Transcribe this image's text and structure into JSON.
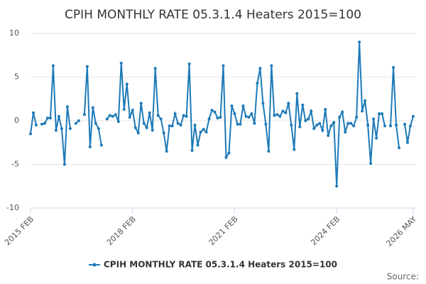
{
  "chart_data": {
    "type": "line",
    "title": "CPIH MONTHLY RATE 05.3.1.4 Heaters 2015=100",
    "source": "Source:",
    "categories": [
      "2015 FEB",
      null,
      null,
      null,
      null,
      null,
      null,
      null,
      null,
      null,
      null,
      null,
      null,
      null,
      null,
      null,
      null,
      null,
      null,
      null,
      null,
      null,
      null,
      null,
      null,
      null,
      null,
      null,
      null,
      null,
      null,
      null,
      null,
      null,
      null,
      null,
      "2018 FEB",
      null,
      null,
      null,
      null,
      null,
      null,
      null,
      null,
      null,
      null,
      null,
      null,
      null,
      null,
      null,
      null,
      null,
      null,
      null,
      null,
      null,
      null,
      null,
      null,
      null,
      null,
      null,
      null,
      null,
      null,
      null,
      null,
      null,
      null,
      null,
      "2021 FEB",
      null,
      null,
      null,
      null,
      null,
      null,
      null,
      null,
      null,
      null,
      null,
      null,
      null,
      null,
      null,
      null,
      null,
      null,
      null,
      null,
      null,
      null,
      null,
      null,
      null,
      null,
      null,
      null,
      null,
      null,
      null,
      null,
      null,
      null,
      null,
      "2024 FEB",
      null,
      null,
      null,
      null,
      null,
      null,
      null,
      null,
      null,
      null,
      null,
      null,
      null,
      null,
      null,
      null,
      null,
      null,
      null,
      null,
      null,
      null,
      null,
      null,
      null,
      null,
      "2026 MAY"
    ],
    "series": [
      {
        "name": "CPIH MONTHLY RATE 05.3.1.4 Heaters 2015=100",
        "color": "#1d7ab8",
        "values": [
          -1.5,
          0.9,
          -0.5,
          null,
          -0.4,
          -0.3,
          0.3,
          0.3,
          6.3,
          -1.1,
          0.5,
          -0.9,
          -5,
          1.6,
          -0.9,
          null,
          -0.3,
          0,
          null,
          0.7,
          6.2,
          -3,
          1.5,
          -0.3,
          -0.9,
          -2.8,
          null,
          0.2,
          0.6,
          0.5,
          0.7,
          -0.1,
          6.6,
          1.3,
          4.2,
          0.4,
          1.2,
          -0.8,
          -1.4,
          2,
          -0.3,
          -0.8,
          0.9,
          -1.1,
          6,
          0.6,
          0.2,
          -1.4,
          -3.5,
          -0.6,
          -0.6,
          0.8,
          -0.3,
          -0.5,
          0.6,
          0.5,
          6.5,
          -3.4,
          -0.5,
          -2.8,
          -1.3,
          -1,
          -1.3,
          0.2,
          1.2,
          1,
          0.3,
          0.4,
          6.3,
          -4.2,
          -3.7,
          1.7,
          0.8,
          -0.4,
          -0.4,
          1.7,
          0.5,
          0.4,
          0.8,
          -0.3,
          4.3,
          6,
          2,
          -0.4,
          -3.5,
          6.3,
          0.6,
          0.7,
          0.5,
          1.1,
          0.9,
          2,
          -0.5,
          -3.3,
          3.1,
          -0.7,
          1.8,
          0,
          0.2,
          1.1,
          -0.9,
          -0.5,
          -0.3,
          -1.1,
          1.3,
          -1.7,
          -0.6,
          -0.2,
          -7.5,
          0.4,
          1,
          -1.3,
          -0.3,
          -0.3,
          -0.6,
          0.4,
          9,
          1.1,
          2.3,
          -0.5,
          -4.9,
          0.2,
          -2,
          0.8,
          0.8,
          -0.6,
          null,
          -0.6,
          6.1,
          -0.5,
          -3.1,
          null,
          -0.4,
          -2.5,
          -0.6,
          0.5
        ]
      }
    ],
    "ylim": [
      -10,
      10
    ],
    "yticks": [
      -10,
      -5,
      0,
      5,
      10
    ],
    "grid": true
  }
}
